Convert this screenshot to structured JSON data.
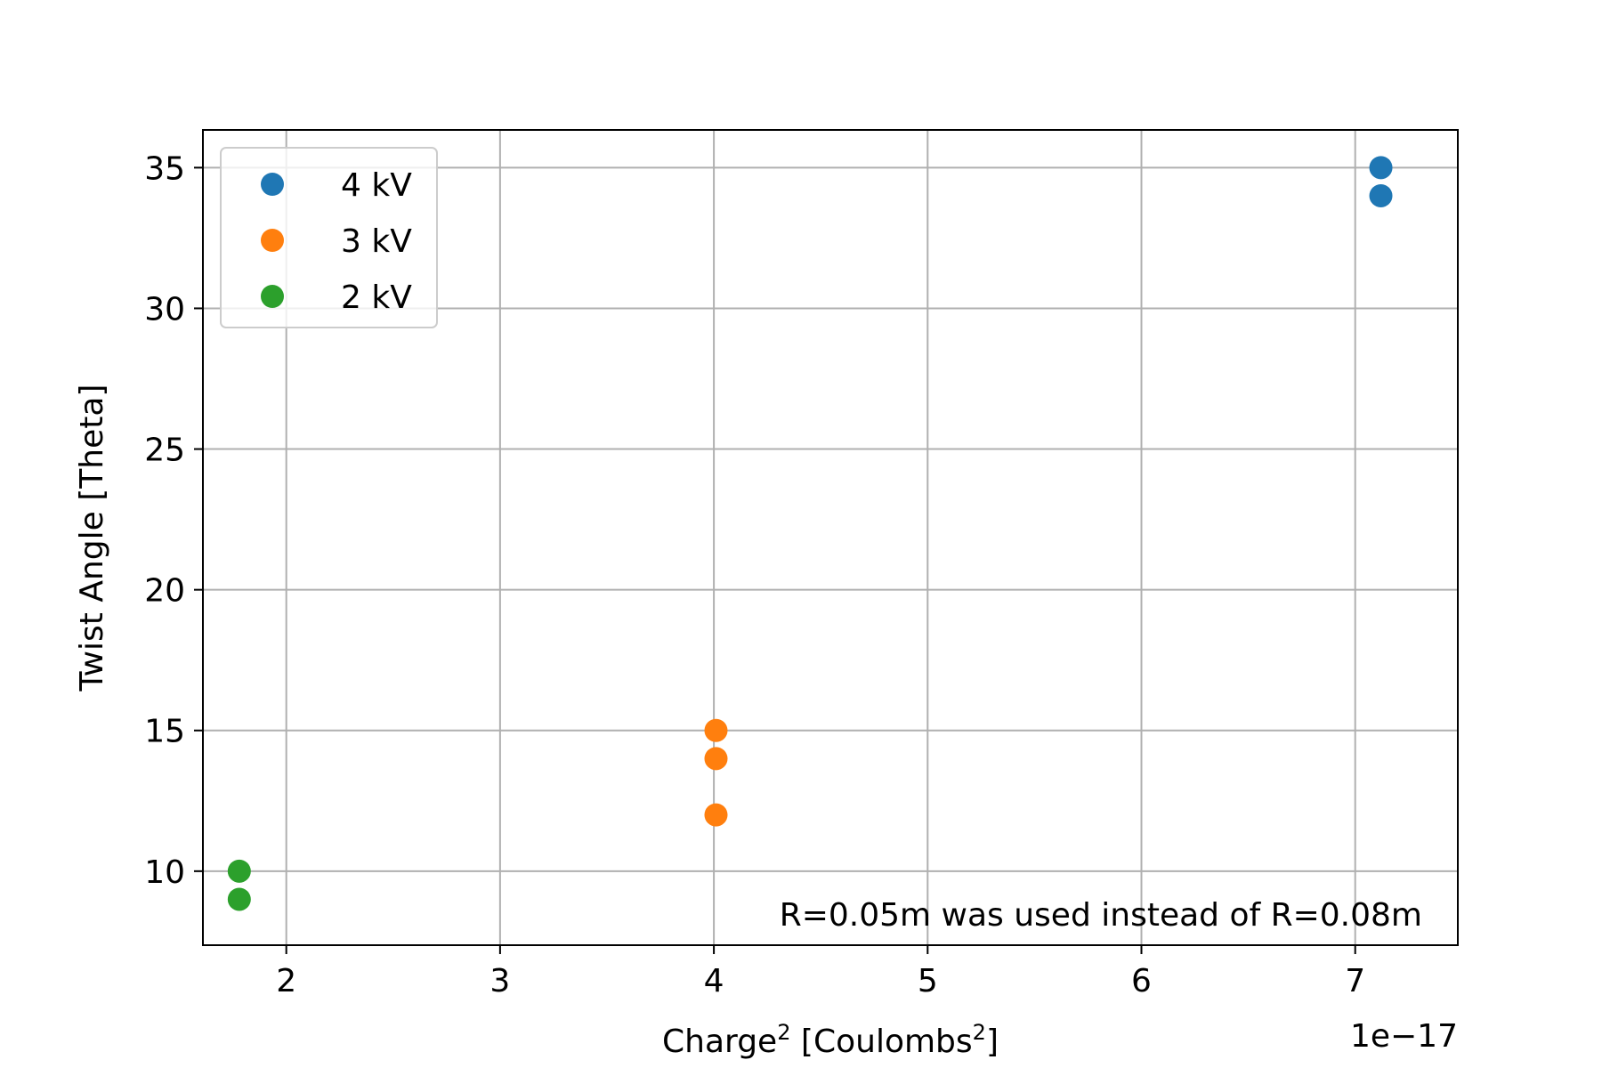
{
  "chart_data": {
    "type": "scatter",
    "title": "",
    "xlabel": "Charge",
    "xlabel_units": " [Coulombs",
    "xlabel_sup": "2",
    "xlabel_close": "]",
    "ylabel": "Twist Angle [Theta]",
    "x_offset_text": "1e−17",
    "x_scale_exponent": -17,
    "xlim": [
      1.61,
      7.48
    ],
    "ylim": [
      7.37,
      36.34
    ],
    "xticks": [
      2,
      3,
      4,
      5,
      6,
      7
    ],
    "yticks": [
      10,
      15,
      20,
      25,
      30,
      35
    ],
    "grid": true,
    "legend_position": "upper left",
    "series": [
      {
        "name": "4 kV",
        "color": "#1f77b4",
        "points": [
          [
            7.12,
            35
          ],
          [
            7.12,
            34
          ]
        ]
      },
      {
        "name": "3 kV",
        "color": "#ff7f0e",
        "points": [
          [
            4.01,
            15
          ],
          [
            4.01,
            14
          ],
          [
            4.01,
            12
          ]
        ]
      },
      {
        "name": "2 kV",
        "color": "#2ca02c",
        "points": [
          [
            1.78,
            10
          ],
          [
            1.78,
            9
          ]
        ]
      }
    ],
    "annotation": "R=0.05m was used instead of R=0.08m"
  }
}
